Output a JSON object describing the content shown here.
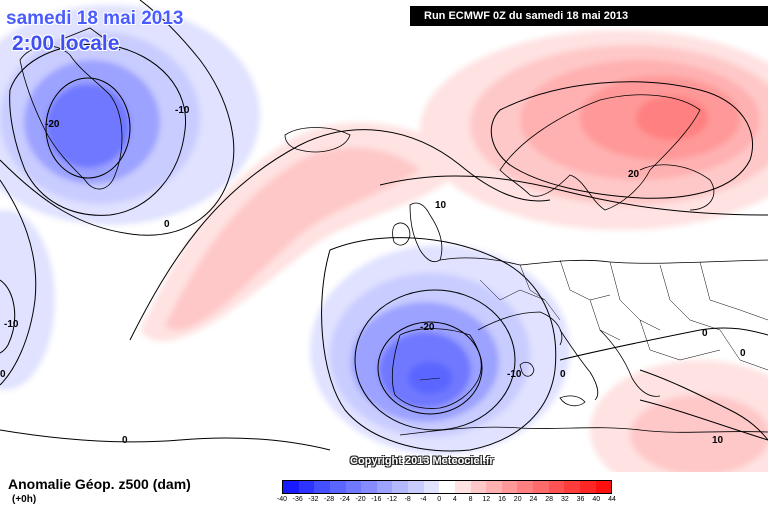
{
  "header": {
    "date": "samedi 18 mai 2013",
    "time": "2:00 locale",
    "run": "Run ECMWF 0Z du samedi 18 mai 2013"
  },
  "footer": {
    "variable": "Anomalie Géop. z500 (dam)",
    "lead": "(+0h)",
    "copyright": "Copyright 2013 Meteociel.fr"
  },
  "legend": {
    "ticks": [
      "-40",
      "-36",
      "-32",
      "-28",
      "-24",
      "-20",
      "-16",
      "-12",
      "-8",
      "-4",
      "0",
      "4",
      "8",
      "12",
      "16",
      "20",
      "24",
      "28",
      "32",
      "36",
      "40",
      "44"
    ],
    "colors": [
      "#1a1aff",
      "#2e34ff",
      "#4450ff",
      "#5a66ff",
      "#7078ff",
      "#868cff",
      "#9ca2ff",
      "#b3b8ff",
      "#c9ccff",
      "#e0e2ff",
      "#ffffff",
      "#ffe2e2",
      "#ffc8c8",
      "#ffb0b0",
      "#ff9898",
      "#ff8080",
      "#ff6a6a",
      "#ff5252",
      "#ff3c3c",
      "#ff2626",
      "#ff1010"
    ]
  },
  "contour_labels": [
    {
      "text": "-20",
      "region": "greenland"
    },
    {
      "text": "-10",
      "region": "greenland-east"
    },
    {
      "text": "0",
      "region": "north-atlantic"
    },
    {
      "text": "-10",
      "region": "labrador"
    },
    {
      "text": "0",
      "region": "west-edge"
    },
    {
      "text": "20",
      "region": "scandinavia"
    },
    {
      "text": "10",
      "region": "north-sea"
    },
    {
      "text": "-20",
      "region": "biscay"
    },
    {
      "text": "-10",
      "region": "iberia-east"
    },
    {
      "text": "0",
      "region": "alps"
    },
    {
      "text": "0",
      "region": "mid-atlantic"
    },
    {
      "text": "0",
      "region": "balkans"
    },
    {
      "text": "0",
      "region": "balkans-east"
    },
    {
      "text": "10",
      "region": "middle-east"
    }
  ],
  "colors": {
    "negative": "#3f4ff2",
    "positive": "#ff1010",
    "banner": "#000000"
  }
}
